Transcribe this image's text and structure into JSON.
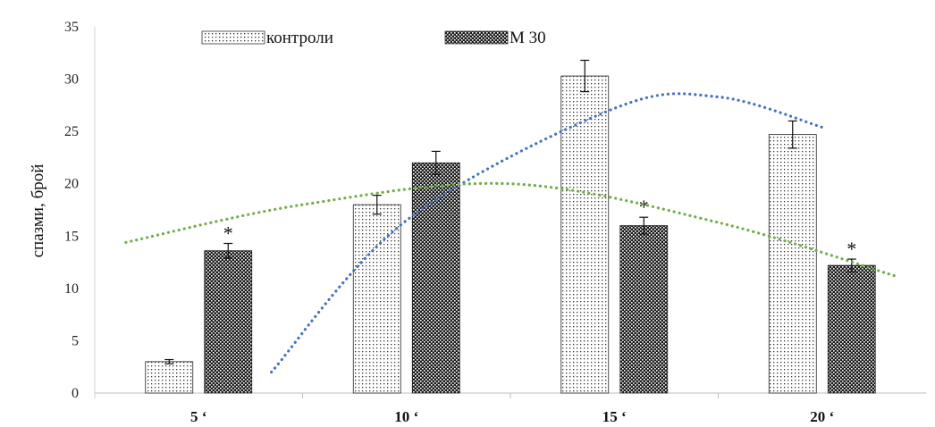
{
  "chart_data": {
    "type": "bar",
    "categories": [
      "5 ‘",
      "10 ‘",
      "15 ‘",
      "20 ‘"
    ],
    "series": [
      {
        "name": "контроли",
        "values": [
          3.0,
          18.0,
          30.3,
          24.7
        ],
        "errors": [
          0.2,
          0.9,
          1.5,
          1.3
        ],
        "pattern": "dots-sparse"
      },
      {
        "name": "M 30",
        "values": [
          13.6,
          22.0,
          16.0,
          12.2
        ],
        "errors": [
          0.7,
          1.1,
          0.8,
          0.6
        ],
        "pattern": "checker-dense"
      }
    ],
    "significance": [
      "*",
      "",
      "*",
      "*"
    ],
    "significance_series": "M 30",
    "trendlines": [
      {
        "series": "контроли",
        "color": "#4472C4",
        "type": "polynomial",
        "points": [
          [
            0.35,
            2.0
          ],
          [
            1,
            16.5
          ],
          [
            2,
            27.2
          ],
          [
            2.5,
            28.3
          ],
          [
            3,
            25.4
          ]
        ]
      },
      {
        "series": "M 30",
        "color": "#70AD47",
        "type": "polynomial",
        "points": [
          [
            -0.35,
            14.4
          ],
          [
            0.5,
            18.0
          ],
          [
            1.5,
            20.0
          ],
          [
            2.5,
            16.3
          ],
          [
            3.35,
            11.2
          ]
        ]
      }
    ],
    "title": "",
    "xlabel": "",
    "ylabel": "спазми, брой",
    "ylim": [
      0,
      35
    ],
    "yticks": [
      0,
      5,
      10,
      15,
      20,
      25,
      30,
      35
    ],
    "grid": false,
    "legend": "top-left"
  }
}
